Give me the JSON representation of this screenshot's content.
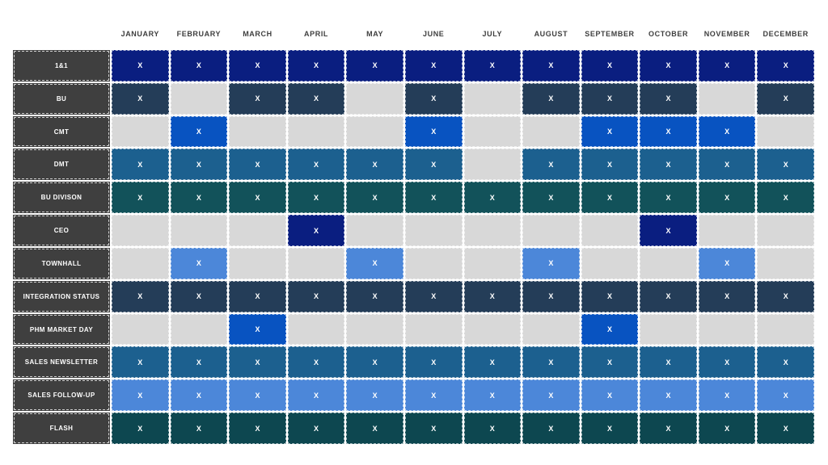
{
  "chart_data": {
    "type": "heatmap",
    "title": "",
    "x_categories": [
      "JANUARY",
      "FEBRUARY",
      "MARCH",
      "APRIL",
      "MAY",
      "JUNE",
      "JULY",
      "AUGUST",
      "SEPTEMBER",
      "OCTOBER",
      "NOVEMBER",
      "DECEMBER"
    ],
    "mark": "X",
    "legend_position": "none",
    "grid": "white-dashed-separators",
    "colors": {
      "empty_cell": "#D8D8D8",
      "row_header_bg": "#3F3F3F",
      "row_header_text": "#FFFFFF",
      "month_header_text": "#3E3E3E",
      "mark_text": "#FFFFFF",
      "navy": "#0A1E80",
      "bright_blue": "#0853C1",
      "medium_blue": "#1C608F",
      "light_blue": "#4C87D9",
      "slate_blue": "#243D58",
      "teal": "#12525A",
      "dark_teal": "#0D4750"
    },
    "series": [
      {
        "name": "1&1",
        "color": "#0A1E80",
        "values": [
          1,
          1,
          1,
          1,
          1,
          1,
          1,
          1,
          1,
          1,
          1,
          1
        ]
      },
      {
        "name": "BU",
        "color": "#243D58",
        "values": [
          1,
          0,
          1,
          1,
          0,
          1,
          0,
          1,
          1,
          1,
          0,
          1
        ]
      },
      {
        "name": "CMT",
        "color": "#0853C1",
        "values": [
          0,
          1,
          0,
          0,
          0,
          1,
          0,
          0,
          1,
          1,
          1,
          0
        ]
      },
      {
        "name": "DMT",
        "color": "#1C608F",
        "values": [
          1,
          1,
          1,
          1,
          1,
          1,
          0,
          1,
          1,
          1,
          1,
          1
        ]
      },
      {
        "name": "BU DIVISON",
        "color": "#12525A",
        "values": [
          1,
          1,
          1,
          1,
          1,
          1,
          1,
          1,
          1,
          1,
          1,
          1
        ]
      },
      {
        "name": "CEO",
        "color": "#0A1E80",
        "values": [
          0,
          0,
          0,
          1,
          0,
          0,
          0,
          0,
          0,
          1,
          0,
          0
        ]
      },
      {
        "name": "TOWNHALL",
        "color": "#4C87D9",
        "values": [
          0,
          1,
          0,
          0,
          1,
          0,
          0,
          1,
          0,
          0,
          1,
          0
        ]
      },
      {
        "name": "INTEGRATION STATUS",
        "color": "#243D58",
        "values": [
          1,
          1,
          1,
          1,
          1,
          1,
          1,
          1,
          1,
          1,
          1,
          1
        ]
      },
      {
        "name": "PHM MARKET DAY",
        "color": "#0853C1",
        "values": [
          0,
          0,
          1,
          0,
          0,
          0,
          0,
          0,
          1,
          0,
          0,
          0
        ]
      },
      {
        "name": "SALES NEWSLETTER",
        "color": "#1C608F",
        "values": [
          1,
          1,
          1,
          1,
          1,
          1,
          1,
          1,
          1,
          1,
          1,
          1
        ]
      },
      {
        "name": "SALES FOLLOW-UP",
        "color": "#4C87D9",
        "values": [
          1,
          1,
          1,
          1,
          1,
          1,
          1,
          1,
          1,
          1,
          1,
          1
        ]
      },
      {
        "name": "FLASH",
        "color": "#0D4750",
        "values": [
          1,
          1,
          1,
          1,
          1,
          1,
          1,
          1,
          1,
          1,
          1,
          1
        ]
      }
    ]
  }
}
